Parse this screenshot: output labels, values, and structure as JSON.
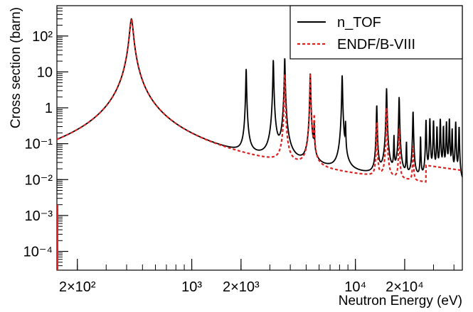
{
  "chart_data": {
    "type": "line",
    "xlabel": "Neutron Energy (eV)",
    "ylabel": "Cross section (barn)",
    "x_scale": "log",
    "y_scale": "log",
    "xlim": [
      150,
      45000
    ],
    "ylim": [
      3e-05,
      700
    ],
    "x_ticks": [
      {
        "value": 200,
        "label": "2×10²"
      },
      {
        "value": 1000,
        "label": "10³"
      },
      {
        "value": 2000,
        "label": "2×10³"
      },
      {
        "value": 10000,
        "label": "10⁴"
      },
      {
        "value": 20000,
        "label": "2×10⁴"
      }
    ],
    "y_ticks": [
      {
        "value": 0.0001,
        "label": "10⁻⁴"
      },
      {
        "value": 0.001,
        "label": "10⁻³"
      },
      {
        "value": 0.01,
        "label": "10⁻²"
      },
      {
        "value": 0.1,
        "label": "10⁻¹"
      },
      {
        "value": 1,
        "label": "1"
      },
      {
        "value": 10,
        "label": "10"
      },
      {
        "value": 100,
        "label": "10²"
      }
    ],
    "legend_position": "top-right",
    "series": [
      {
        "name": "n_TOF",
        "color": "#000000",
        "style": "solid",
        "baseline": 0.002,
        "background_min": 0.00016,
        "resonances": [
          {
            "x": 428,
            "peak": 300,
            "width": 0.06
          },
          {
            "x": 2150,
            "peak": 12,
            "width": 0.012
          },
          {
            "x": 3150,
            "peak": 22,
            "width": 0.012
          },
          {
            "x": 3700,
            "peak": 25,
            "width": 0.012
          },
          {
            "x": 5300,
            "peak": 9,
            "width": 0.012
          },
          {
            "x": 5600,
            "peak": 0.3,
            "width": 0.01
          },
          {
            "x": 8300,
            "peak": 8,
            "width": 0.012
          },
          {
            "x": 8700,
            "peak": 0.35,
            "width": 0.01
          },
          {
            "x": 13500,
            "peak": 1.2,
            "width": 0.012
          },
          {
            "x": 15500,
            "peak": 3.5,
            "width": 0.012
          },
          {
            "x": 17200,
            "peak": 0.15,
            "width": 0.01
          },
          {
            "x": 18500,
            "peak": 2,
            "width": 0.012
          },
          {
            "x": 20500,
            "peak": 0.1,
            "width": 0.01
          },
          {
            "x": 22500,
            "peak": 0.8,
            "width": 0.012
          },
          {
            "x": 25000,
            "peak": 0.15,
            "width": 0.01
          },
          {
            "x": 27000,
            "peak": 0.45,
            "width": 0.012
          },
          {
            "x": 28500,
            "peak": 0.5,
            "width": 0.012
          },
          {
            "x": 30000,
            "peak": 0.45,
            "width": 0.012
          },
          {
            "x": 31500,
            "peak": 0.3,
            "width": 0.012
          },
          {
            "x": 33000,
            "peak": 0.5,
            "width": 0.012
          },
          {
            "x": 34500,
            "peak": 0.3,
            "width": 0.012
          },
          {
            "x": 36000,
            "peak": 0.4,
            "width": 0.012
          },
          {
            "x": 37500,
            "peak": 0.5,
            "width": 0.012
          },
          {
            "x": 39000,
            "peak": 0.25,
            "width": 0.012
          },
          {
            "x": 41000,
            "peak": 0.4,
            "width": 0.012
          },
          {
            "x": 43000,
            "peak": 0.3,
            "width": 0.012
          }
        ]
      },
      {
        "name": "ENDF/B-VIII",
        "color": "#dd2222",
        "style": "dashed",
        "baseline": 0.002,
        "background_min": 6e-05,
        "smooth_from_x": 27000,
        "smooth_value": 0.025,
        "smooth_end_value": 0.018,
        "resonances": [
          {
            "x": 428,
            "peak": 300,
            "width": 0.06
          },
          {
            "x": 3700,
            "peak": 9,
            "width": 0.012
          },
          {
            "x": 5300,
            "peak": 9,
            "width": 0.012
          },
          {
            "x": 5600,
            "peak": 0.6,
            "width": 0.01
          },
          {
            "x": 13500,
            "peak": 0.4,
            "width": 0.012
          },
          {
            "x": 15500,
            "peak": 1.0,
            "width": 0.012
          },
          {
            "x": 18500,
            "peak": 0.25,
            "width": 0.012
          },
          {
            "x": 22500,
            "peak": 0.08,
            "width": 0.012
          }
        ]
      }
    ]
  }
}
